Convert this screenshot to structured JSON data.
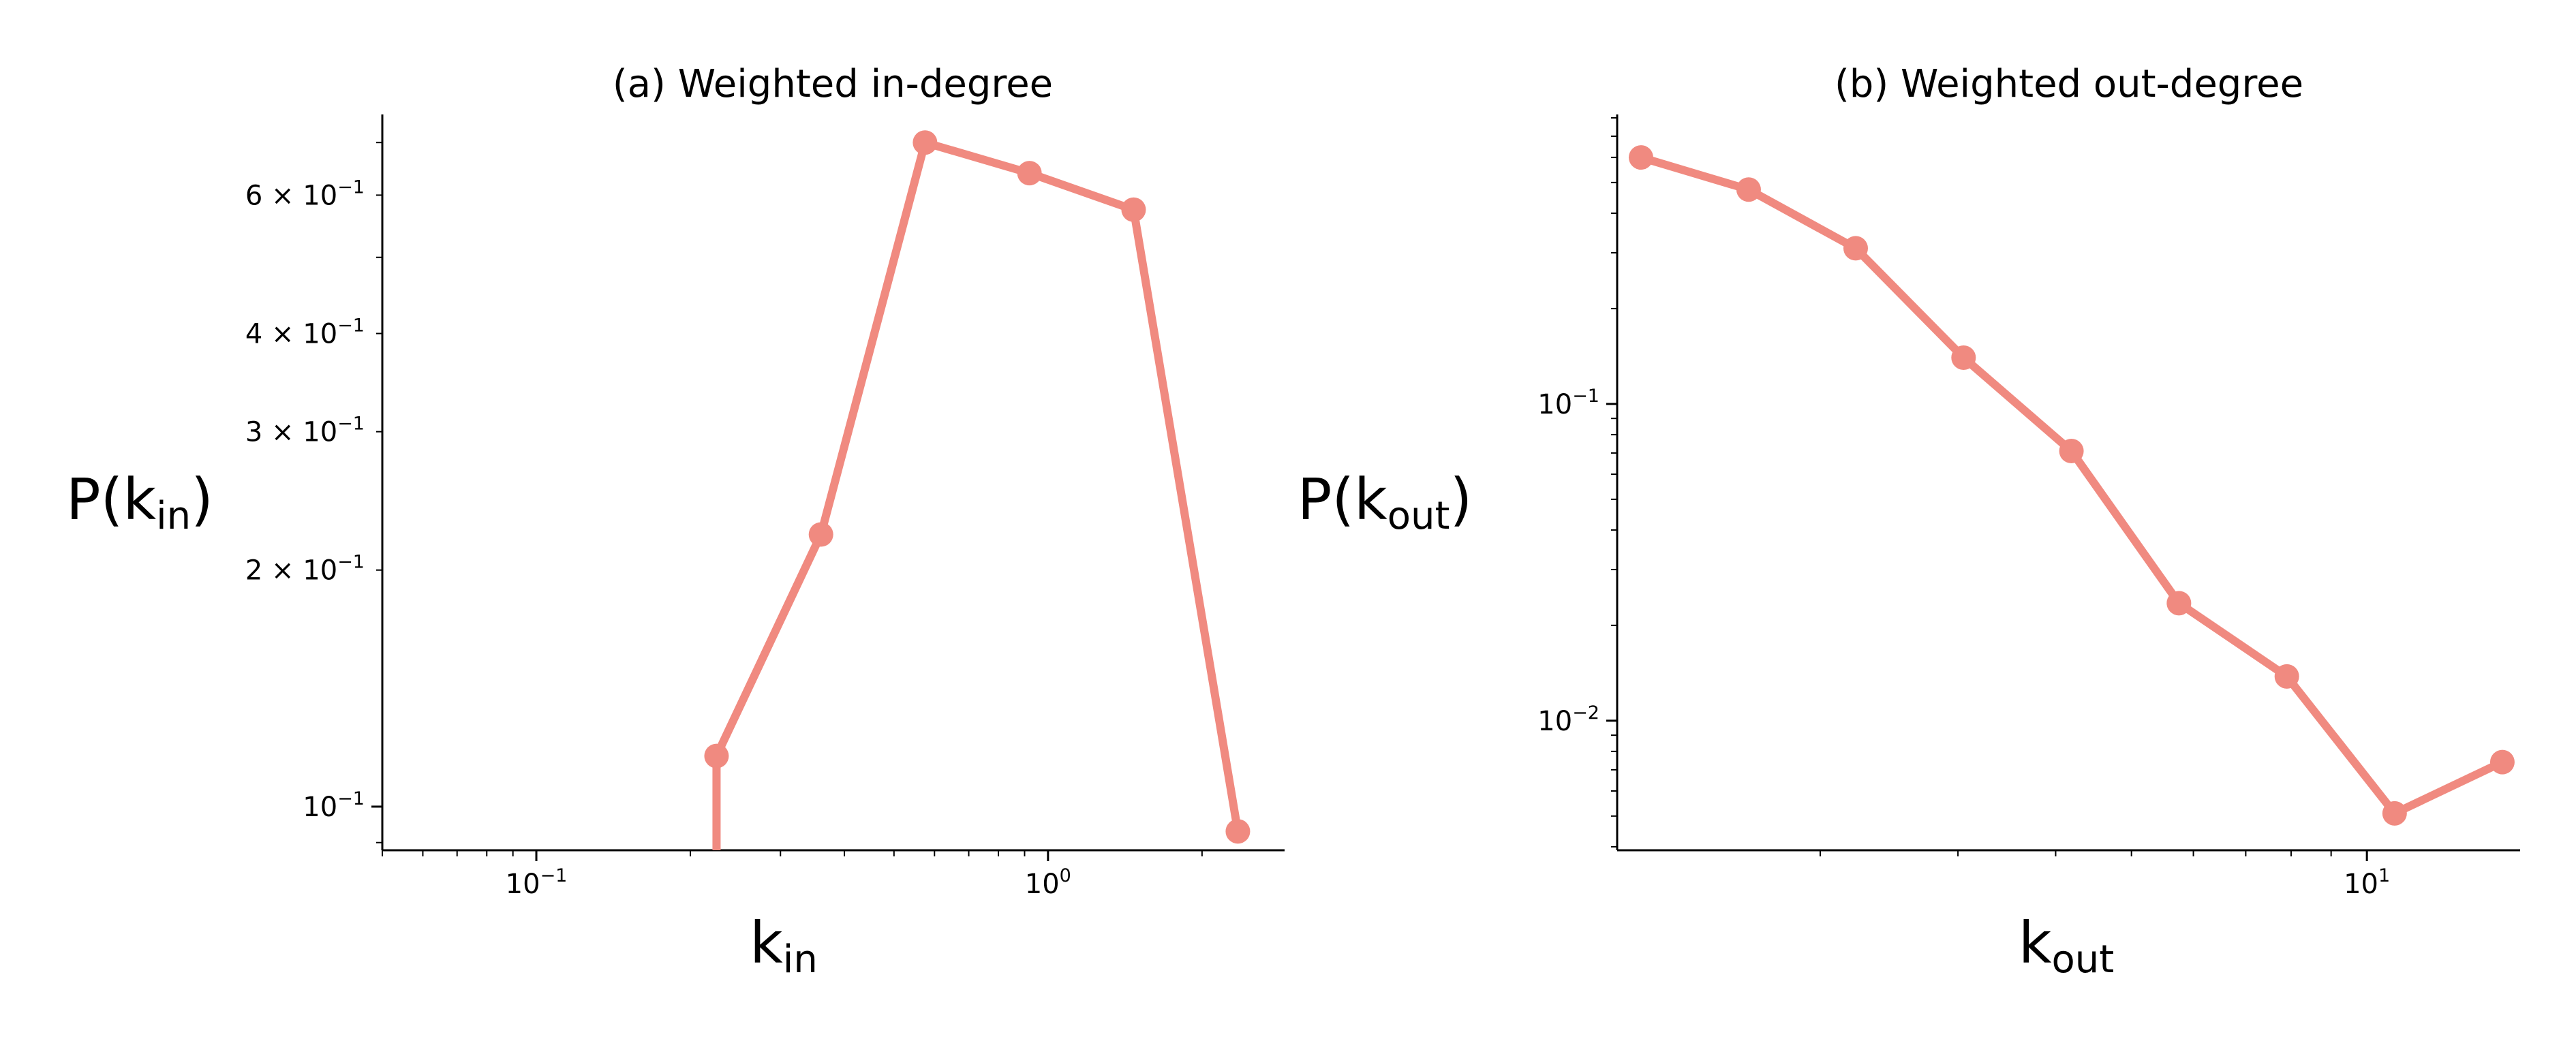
{
  "chart_data": [
    {
      "id": "a",
      "type": "line",
      "title": "(a) Weighted in-degree",
      "xlabel": {
        "main": "k",
        "sub": "in"
      },
      "ylabel": {
        "main": "P(k",
        "sub": "in",
        "close": ")"
      },
      "xscale": "log",
      "yscale": "log",
      "xlim": [
        0.05,
        2.9
      ],
      "ylim": [
        0.088,
        0.76
      ],
      "grid": false,
      "legend": "none",
      "x_major_ticks": [
        {
          "value": 0.1,
          "base": "10",
          "exp": "−1"
        },
        {
          "value": 1,
          "base": "10",
          "exp": "0"
        }
      ],
      "y_ticks": [
        {
          "value": 0.6,
          "mant": "6",
          "base": "10",
          "exp": "−1"
        },
        {
          "value": 0.4,
          "mant": "4",
          "base": "10",
          "exp": "−1"
        },
        {
          "value": 0.3,
          "mant": "3",
          "base": "10",
          "exp": "−1"
        },
        {
          "value": 0.2,
          "mant": "2",
          "base": "10",
          "exp": "−1"
        },
        {
          "value": 0.1,
          "mant": "",
          "base": "10",
          "exp": "−1"
        }
      ],
      "series": [
        {
          "color": "#f08a80",
          "x": [
            0.225,
            0.36,
            0.575,
            0.92,
            1.47,
            2.35
          ],
          "y": [
            0.116,
            0.222,
            0.7,
            0.64,
            0.575,
            0.093
          ],
          "drop_to_axis_from_first": true
        }
      ]
    },
    {
      "id": "b",
      "type": "line",
      "title": "(b) Weighted out-degree",
      "xlabel": {
        "main": "k",
        "sub": "out"
      },
      "ylabel": {
        "main": "P(k",
        "sub": "out",
        "close": ")"
      },
      "xscale": "log",
      "yscale": "log",
      "xlim": [
        1.1,
        15.7
      ],
      "ylim": [
        0.0039,
        0.82
      ],
      "grid": false,
      "legend": "none",
      "x_major_ticks": [
        {
          "value": 10,
          "base": "10",
          "exp": "1"
        }
      ],
      "y_ticks": [
        {
          "value": 0.1,
          "mant": "",
          "base": "10",
          "exp": "−1"
        },
        {
          "value": 0.01,
          "mant": "",
          "base": "10",
          "exp": "−2"
        }
      ],
      "series": [
        {
          "color": "#f08a80",
          "x": [
            1.18,
            1.62,
            2.22,
            3.05,
            4.19,
            5.75,
            7.9,
            10.85,
            14.9
          ],
          "y": [
            0.6,
            0.475,
            0.31,
            0.14,
            0.071,
            0.0235,
            0.0138,
            0.0051,
            0.0074
          ]
        }
      ]
    }
  ]
}
